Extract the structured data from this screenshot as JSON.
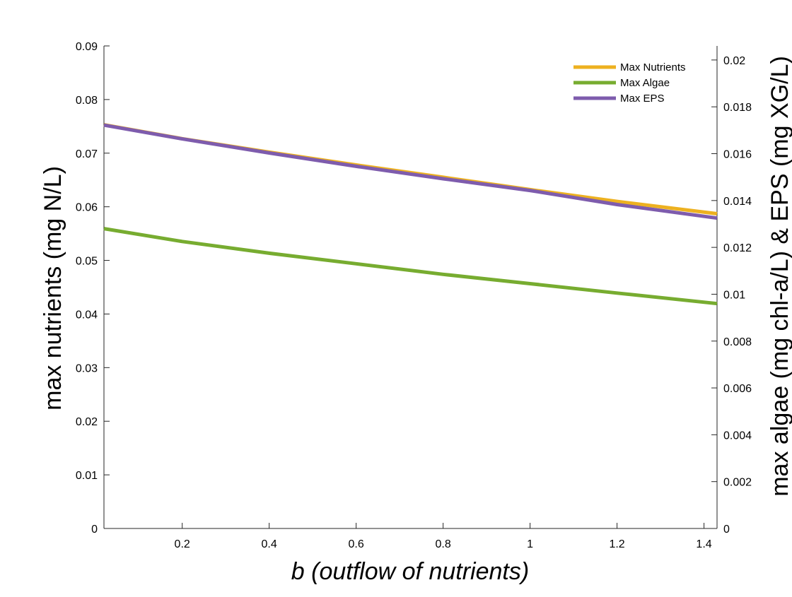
{
  "chart_data": {
    "type": "line",
    "xlabel": "b (outflow of nutrients)",
    "ylabel_left": "max nutrients (mg N/L)",
    "ylabel_right": "max algae (mg chl-a/L) & EPS (mg XG/L)",
    "xlim": [
      0.02,
      1.43
    ],
    "ylim_left": [
      0,
      0.09
    ],
    "ylim_right": [
      0,
      0.0206
    ],
    "x_ticks": [
      0.2,
      0.4,
      0.6,
      0.8,
      1,
      1.2,
      1.4
    ],
    "x_tick_labels": [
      "0.2",
      "0.4",
      "0.6",
      "0.8",
      "1",
      "1.2",
      "1.4"
    ],
    "y_left_ticks": [
      0,
      0.01,
      0.02,
      0.03,
      0.04,
      0.05,
      0.06,
      0.07,
      0.08,
      0.09
    ],
    "y_left_tick_labels": [
      "0",
      "0.01",
      "0.02",
      "0.03",
      "0.04",
      "0.05",
      "0.06",
      "0.07",
      "0.08",
      "0.09"
    ],
    "y_right_ticks": [
      0,
      0.002,
      0.004,
      0.006,
      0.008,
      0.01,
      0.012,
      0.014,
      0.016,
      0.018,
      0.02
    ],
    "y_right_tick_labels": [
      "0",
      "0.002",
      "0.004",
      "0.006",
      "0.008",
      "0.01",
      "0.012",
      "0.014",
      "0.016",
      "0.018",
      "0.02"
    ],
    "grid": false,
    "legend_position": "top-right",
    "series": [
      {
        "name": "Max Nutrients",
        "axis": "left",
        "color": "#EDB120",
        "x": [
          0.02,
          0.2,
          0.4,
          0.6,
          0.8,
          1.0,
          1.2,
          1.43
        ],
        "values": [
          0.0753,
          0.0727,
          0.0702,
          0.0678,
          0.0655,
          0.0632,
          0.061,
          0.0587
        ]
      },
      {
        "name": "Max Algae",
        "axis": "right",
        "color": "#77AC30",
        "x": [
          0.02,
          0.2,
          0.4,
          0.6,
          0.8,
          1.0,
          1.2,
          1.43
        ],
        "values": [
          0.0128,
          0.01225,
          0.01175,
          0.0113,
          0.01085,
          0.01045,
          0.01005,
          0.0096
        ]
      },
      {
        "name": "Max EPS",
        "axis": "right",
        "color": "#7E5CAD",
        "x": [
          0.02,
          0.2,
          0.4,
          0.6,
          0.8,
          1.0,
          1.2,
          1.43
        ],
        "values": [
          0.01722,
          0.01663,
          0.01603,
          0.01546,
          0.01493,
          0.01443,
          0.01383,
          0.01325
        ]
      }
    ]
  }
}
